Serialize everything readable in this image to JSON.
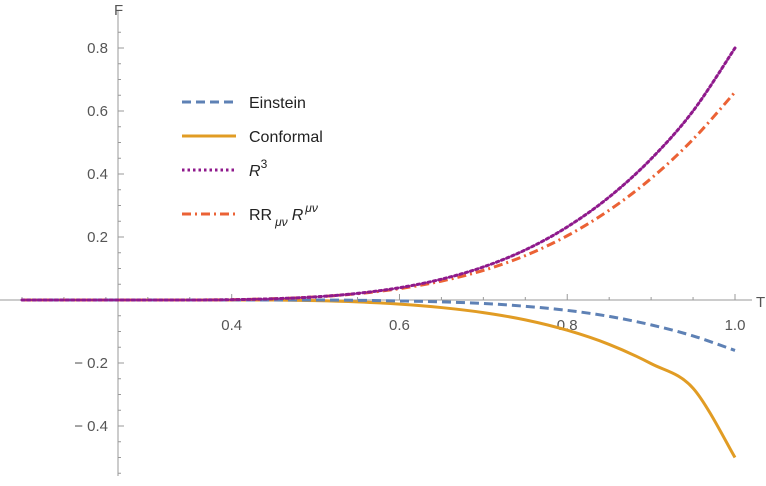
{
  "chart_data": {
    "type": "line",
    "xlabel": "T",
    "ylabel": "F",
    "xlim": [
      0.15,
      1.0
    ],
    "ylim": [
      -0.55,
      0.85
    ],
    "x_ticks": [
      0.4,
      0.6,
      0.8,
      1.0
    ],
    "x_tick_labels": [
      "0.4",
      "0.6",
      "0.8",
      "1.0"
    ],
    "y_ticks": [
      -0.4,
      -0.2,
      0.2,
      0.4,
      0.6,
      0.8
    ],
    "y_tick_labels": [
      "− 0.4",
      "− 0.2",
      "0.2",
      "0.4",
      "0.6",
      "0.8"
    ],
    "grid": false,
    "legend_position": "upper-left",
    "x": [
      0.15,
      0.2,
      0.25,
      0.3,
      0.35,
      0.4,
      0.45,
      0.5,
      0.55,
      0.6,
      0.65,
      0.7,
      0.75,
      0.8,
      0.85,
      0.9,
      0.95,
      1.0
    ],
    "series": [
      {
        "name": "Einstein",
        "style": "dashed",
        "color": "#5e81b5",
        "values": [
          0,
          0,
          0,
          0,
          0,
          0,
          0,
          0,
          -0.001,
          -0.003,
          -0.006,
          -0.011,
          -0.02,
          -0.033,
          -0.052,
          -0.079,
          -0.114,
          -0.16
        ]
      },
      {
        "name": "Conformal",
        "style": "solid",
        "color": "#e19c24",
        "values": [
          0,
          0,
          0,
          0,
          0,
          0,
          0,
          -0.002,
          -0.006,
          -0.013,
          -0.024,
          -0.04,
          -0.063,
          -0.096,
          -0.141,
          -0.202,
          -0.28,
          -0.5
        ]
      },
      {
        "name": "R^3",
        "label_main": "R",
        "label_sup": "3",
        "style": "dotted",
        "color": "#8f1a8c",
        "values": [
          0,
          0,
          0,
          0,
          0,
          0.001,
          0.004,
          0.01,
          0.021,
          0.039,
          0.066,
          0.105,
          0.159,
          0.232,
          0.327,
          0.448,
          0.6,
          0.8
        ]
      },
      {
        "name": "RR_{μν} R^{μν}",
        "label_main": "RR",
        "label_sub": "μν",
        "label_main2": "R",
        "label_sup": "μν",
        "style": "dashdot",
        "color": "#eb6235",
        "values": [
          0,
          0,
          0,
          0,
          0,
          0.001,
          0.004,
          0.01,
          0.02,
          0.036,
          0.06,
          0.094,
          0.141,
          0.204,
          0.285,
          0.386,
          0.51,
          0.66
        ]
      }
    ]
  }
}
